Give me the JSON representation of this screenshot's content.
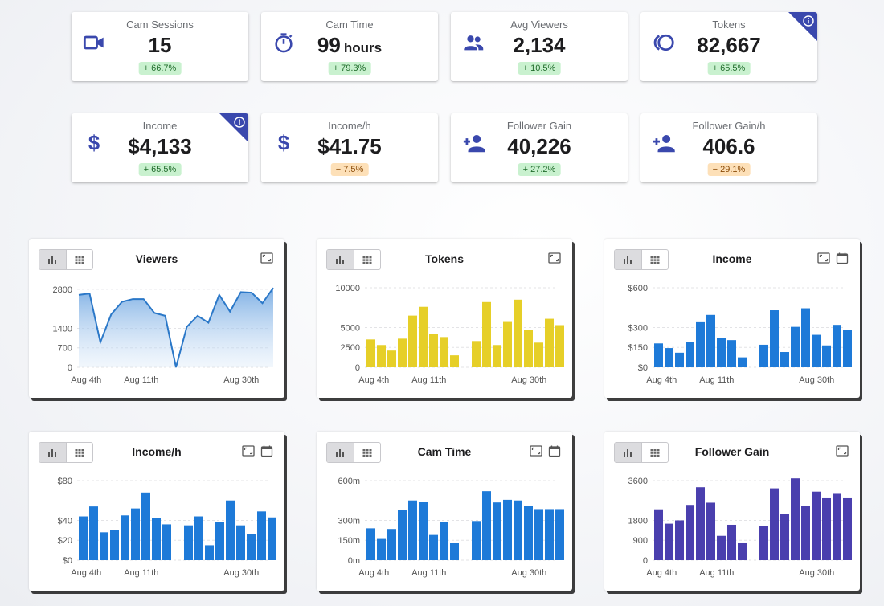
{
  "colors": {
    "accent": "#3a48ad",
    "line": "#2b78c8",
    "blue": "#1e7ad8",
    "yellow": "#e6cf28",
    "purple": "#4a3fae"
  },
  "stats": [
    {
      "label": "Cam Sessions",
      "value": "15",
      "unit": "",
      "delta": "+ 66.7%",
      "trend": "up",
      "icon": "video-camera-icon",
      "corner": false
    },
    {
      "label": "Cam Time",
      "value": "99",
      "unit": "hours",
      "delta": "+ 79.3%",
      "trend": "up",
      "icon": "stopwatch-icon",
      "corner": false
    },
    {
      "label": "Avg Viewers",
      "value": "2,134",
      "unit": "",
      "delta": "+ 10.5%",
      "trend": "up",
      "icon": "people-icon",
      "corner": false
    },
    {
      "label": "Tokens",
      "value": "82,667",
      "unit": "",
      "delta": "+ 65.5%",
      "trend": "up",
      "icon": "tokens-icon",
      "corner": true
    },
    {
      "label": "Income",
      "value": "$4,133",
      "unit": "",
      "delta": "+ 65.5%",
      "trend": "up",
      "icon": "dollar-icon",
      "corner": true
    },
    {
      "label": "Income/h",
      "value": "$41.75",
      "unit": "",
      "delta": "− 7.5%",
      "trend": "down",
      "icon": "dollar-icon",
      "corner": false
    },
    {
      "label": "Follower Gain",
      "value": "40,226",
      "unit": "",
      "delta": "+ 27.2%",
      "trend": "up",
      "icon": "add-person-icon",
      "corner": false
    },
    {
      "label": "Follower Gain/h",
      "value": "406.6",
      "unit": "",
      "delta": "− 29.1%",
      "trend": "down",
      "icon": "add-person-icon",
      "corner": false
    }
  ],
  "chart_data": [
    {
      "title": "Viewers",
      "type": "area",
      "icons": [
        "expand-icon"
      ],
      "x_ticks": [
        "Aug 4th",
        "Aug 11th",
        "Aug 30th"
      ],
      "y_ticks": [
        {
          "v": 0,
          "t": "0"
        },
        {
          "v": 700,
          "t": "700"
        },
        {
          "v": 1400,
          "t": "1400"
        },
        {
          "v": 2800,
          "t": "2800"
        }
      ],
      "ylim": [
        0,
        3000
      ],
      "segments": [
        [
          2600,
          2650,
          900,
          1900,
          2350,
          2450,
          2450,
          1950,
          1850,
          0,
          1450,
          1850,
          1600,
          2600,
          2000,
          2700,
          2680,
          2300,
          2850
        ]
      ]
    },
    {
      "title": "Tokens",
      "type": "bar",
      "color": "yellow",
      "icons": [
        "expand-icon"
      ],
      "x_ticks": [
        "Aug 4th",
        "Aug 11th",
        "Aug 30th"
      ],
      "y_ticks": [
        {
          "v": 0,
          "t": "0"
        },
        {
          "v": 2500,
          "t": "2500"
        },
        {
          "v": 5000,
          "t": "5000"
        },
        {
          "v": 10000,
          "t": "10000"
        }
      ],
      "ylim": [
        0,
        10500
      ],
      "segments": [
        [
          3500,
          2800,
          2100,
          3600,
          6500,
          7600,
          4200,
          3800,
          1500
        ],
        [
          3300,
          8200,
          2800,
          5700,
          8500,
          4700,
          3100,
          6100,
          5300
        ]
      ]
    },
    {
      "title": "Income",
      "type": "bar",
      "color": "blue",
      "icons": [
        "expand-icon",
        "calendar-icon"
      ],
      "x_ticks": [
        "Aug 4th",
        "Aug 11th",
        "Aug 30th"
      ],
      "y_ticks": [
        {
          "v": 0,
          "t": "$0"
        },
        {
          "v": 150,
          "t": "$150"
        },
        {
          "v": 300,
          "t": "$300"
        },
        {
          "v": 600,
          "t": "$600"
        }
      ],
      "ylim": [
        0,
        630
      ],
      "segments": [
        [
          180,
          145,
          110,
          190,
          340,
          395,
          220,
          205,
          75
        ],
        [
          170,
          430,
          115,
          305,
          445,
          245,
          165,
          320,
          280
        ]
      ]
    },
    {
      "title": "Income/h",
      "type": "bar",
      "color": "blue",
      "icons": [
        "expand-icon",
        "calendar-icon"
      ],
      "x_ticks": [
        "Aug 4th",
        "Aug 11th",
        "Aug 30th"
      ],
      "y_ticks": [
        {
          "v": 0,
          "t": "$0"
        },
        {
          "v": 20,
          "t": "$20"
        },
        {
          "v": 40,
          "t": "$40"
        },
        {
          "v": 80,
          "t": "$80"
        }
      ],
      "ylim": [
        0,
        84
      ],
      "segments": [
        [
          44,
          54,
          28,
          30,
          45,
          52,
          68,
          42,
          36
        ],
        [
          35,
          44,
          15,
          38,
          60,
          35,
          26,
          49,
          43
        ]
      ]
    },
    {
      "title": "Cam Time",
      "type": "bar",
      "color": "blue",
      "icons": [
        "expand-icon",
        "calendar-icon"
      ],
      "x_ticks": [
        "Aug 4th",
        "Aug 11th",
        "Aug 30th"
      ],
      "y_ticks": [
        {
          "v": 0,
          "t": "0m"
        },
        {
          "v": 150,
          "t": "150m"
        },
        {
          "v": 300,
          "t": "300m"
        },
        {
          "v": 600,
          "t": "600m"
        }
      ],
      "ylim": [
        0,
        630
      ],
      "segments": [
        [
          240,
          160,
          235,
          380,
          450,
          440,
          190,
          285,
          130
        ],
        [
          295,
          520,
          435,
          455,
          450,
          410,
          385,
          385,
          385
        ]
      ]
    },
    {
      "title": "Follower Gain",
      "type": "bar",
      "color": "purple",
      "icons": [
        "expand-icon"
      ],
      "x_ticks": [
        "Aug 4th",
        "Aug 11th",
        "Aug 30th"
      ],
      "y_ticks": [
        {
          "v": 0,
          "t": "0"
        },
        {
          "v": 900,
          "t": "900"
        },
        {
          "v": 1800,
          "t": "1800"
        },
        {
          "v": 3600,
          "t": "3600"
        }
      ],
      "ylim": [
        0,
        3780
      ],
      "segments": [
        [
          2300,
          1650,
          1800,
          2500,
          3300,
          2600,
          1100,
          1600,
          800
        ],
        [
          1550,
          3250,
          2100,
          3700,
          2450,
          3100,
          2800,
          3000,
          2800
        ]
      ]
    }
  ]
}
